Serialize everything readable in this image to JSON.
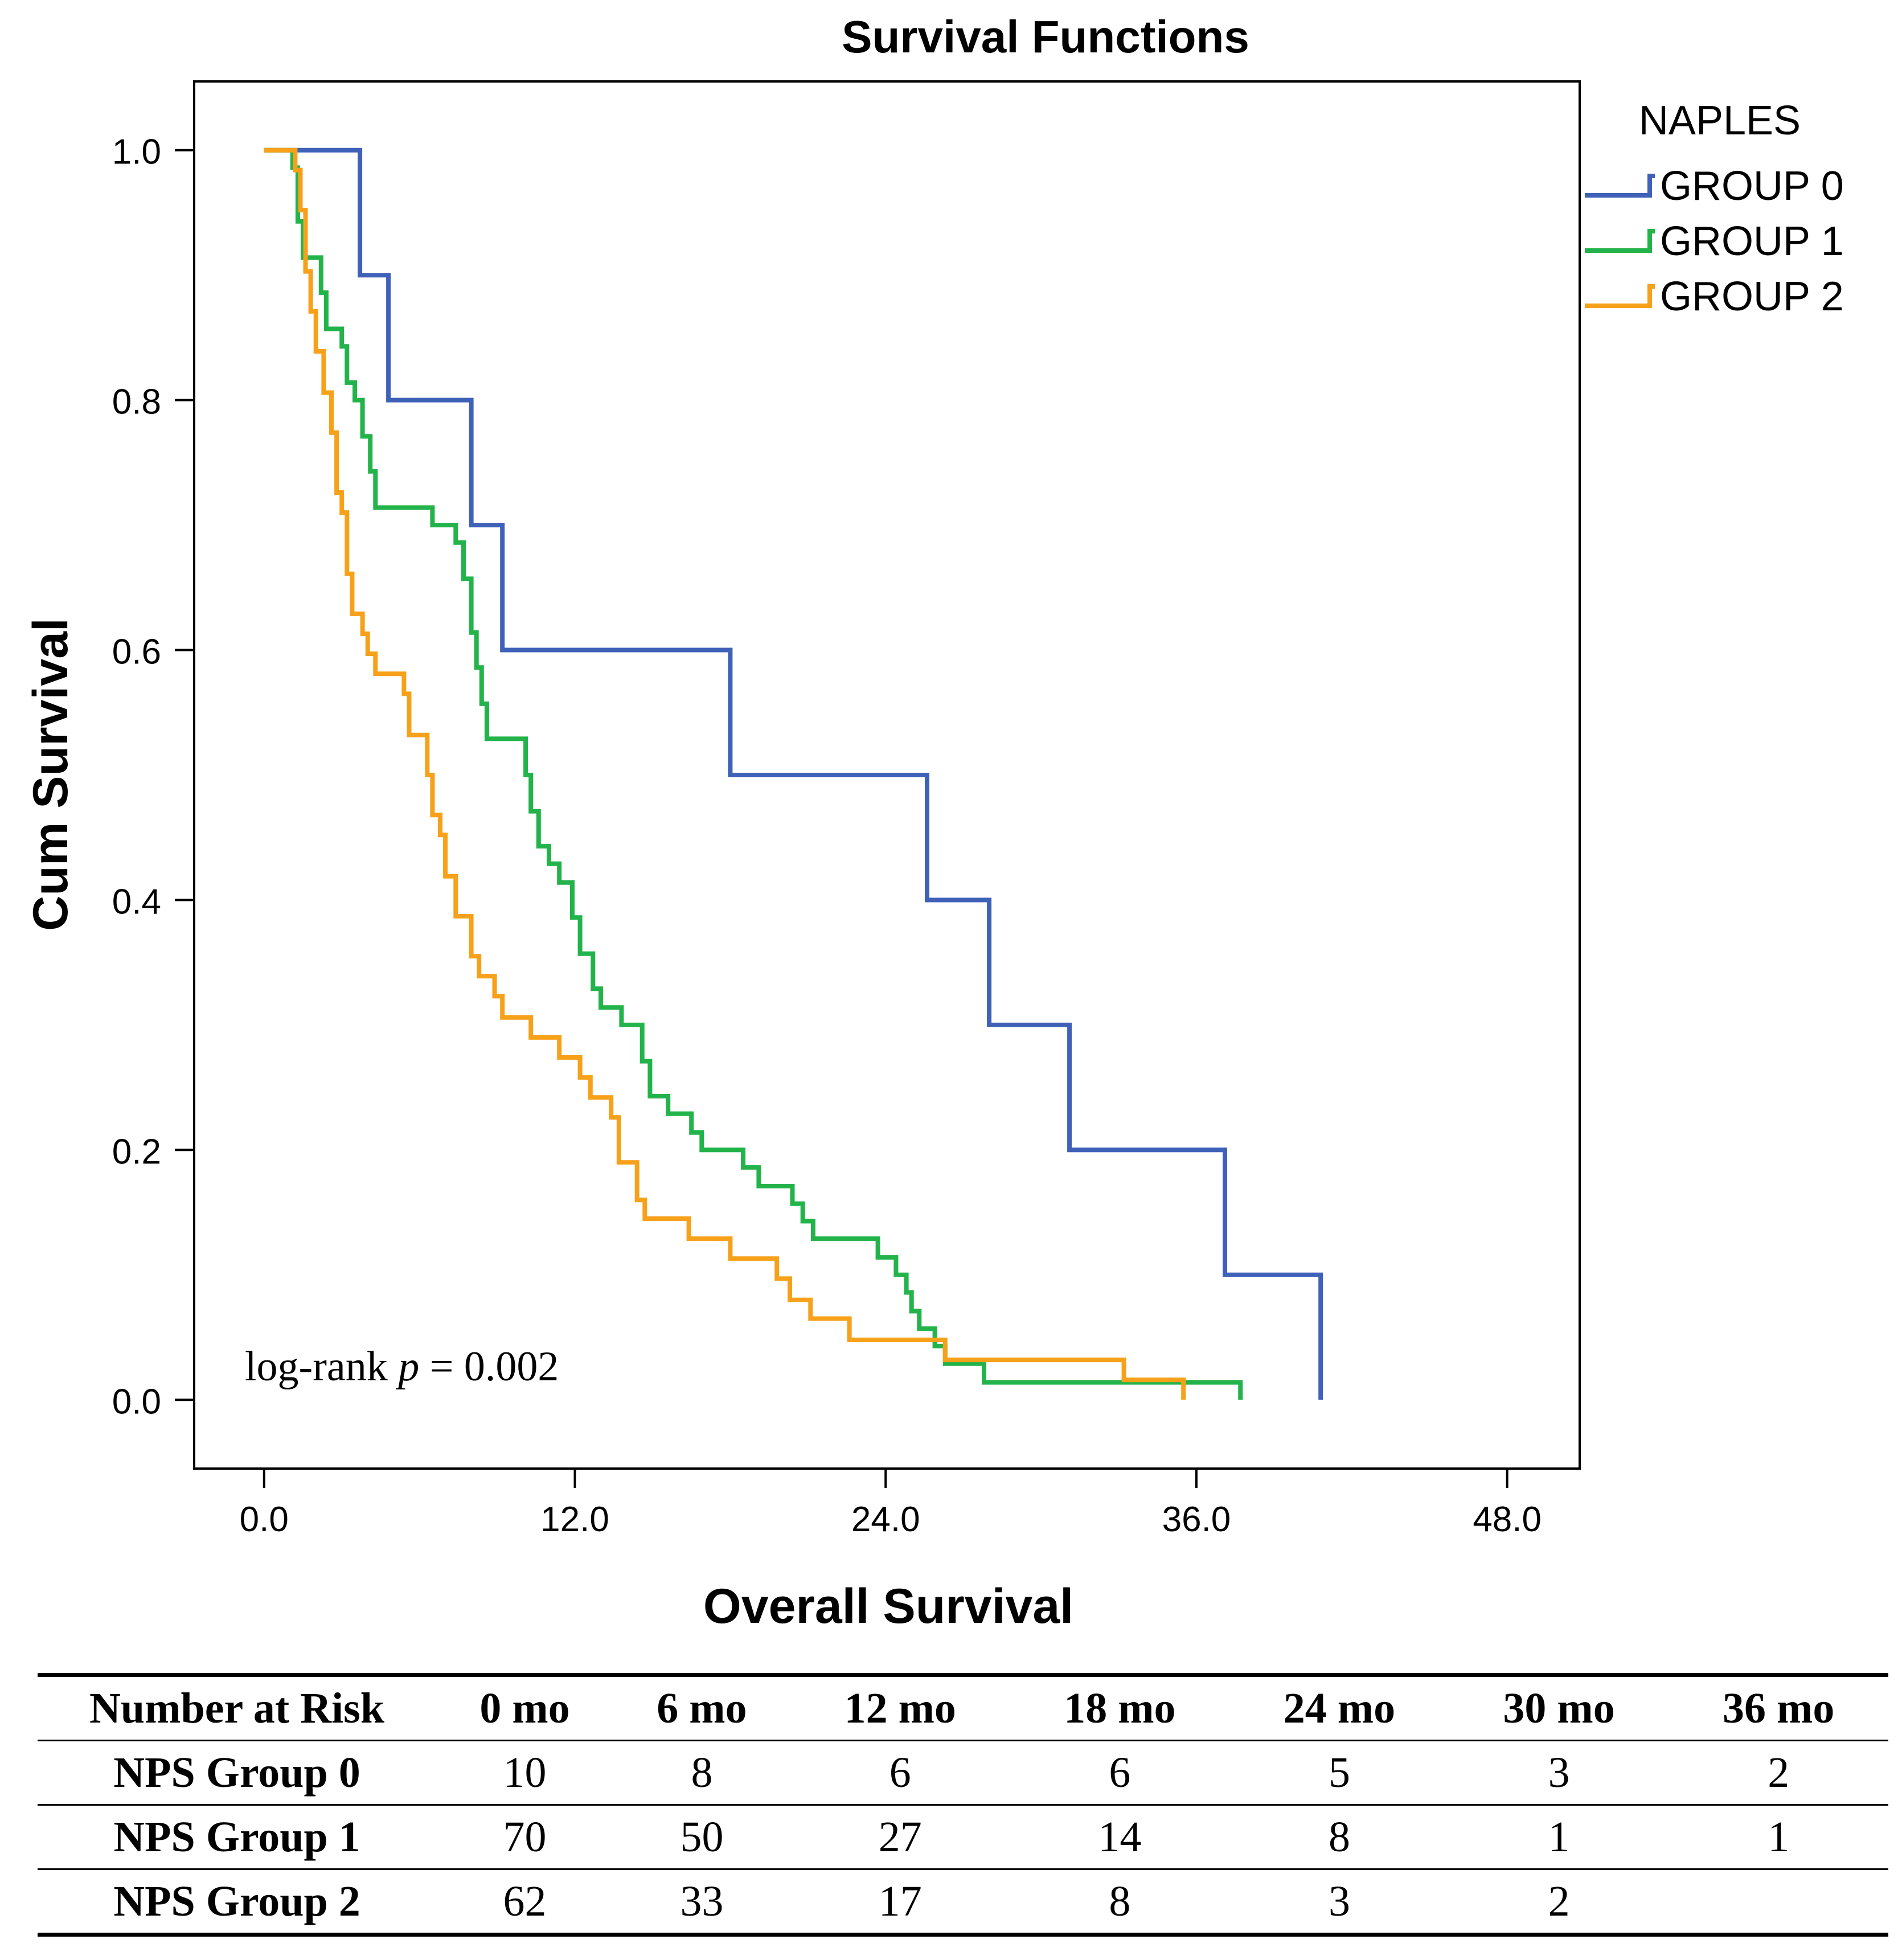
{
  "chart_data": {
    "type": "line",
    "step": true,
    "title": "Survival Functions",
    "xlabel": "Overall Survival",
    "ylabel": "Cum Survival",
    "xlim": [
      -2.7,
      50.8
    ],
    "ylim": [
      -0.055,
      1.055
    ],
    "xticks": [
      "0.0",
      "12.0",
      "24.0",
      "36.0",
      "48.0"
    ],
    "xtick_values": [
      0,
      12,
      24,
      36,
      48
    ],
    "yticks": [
      "0.0",
      "0.2",
      "0.4",
      "0.6",
      "0.8",
      "1.0"
    ],
    "ytick_values": [
      0,
      0.2,
      0.4,
      0.6,
      0.8,
      1.0
    ],
    "legend": {
      "title": "NAPLES",
      "position": "right"
    },
    "annotation": {
      "prefix": "log-rank ",
      "italic": "p",
      "suffix": " = 0.002"
    },
    "series": [
      {
        "name": "GROUP 0",
        "color": "#3f62b8",
        "points": [
          [
            0,
            1
          ],
          [
            3.7,
            1
          ],
          [
            3.7,
            0.9
          ],
          [
            4.8,
            0.9
          ],
          [
            4.8,
            0.8
          ],
          [
            8,
            0.8
          ],
          [
            8,
            0.7
          ],
          [
            9.2,
            0.7
          ],
          [
            9.2,
            0.6
          ],
          [
            18,
            0.6
          ],
          [
            18,
            0.5
          ],
          [
            25.6,
            0.5
          ],
          [
            25.6,
            0.4
          ],
          [
            28,
            0.4
          ],
          [
            28,
            0.3
          ],
          [
            31.1,
            0.3
          ],
          [
            31.1,
            0.2
          ],
          [
            37.1,
            0.2
          ],
          [
            37.1,
            0.1
          ],
          [
            40.8,
            0.1
          ],
          [
            40.8,
            0
          ]
        ]
      },
      {
        "name": "GROUP 1",
        "color": "#23b34b",
        "points": [
          [
            0,
            1
          ],
          [
            1.1,
            1
          ],
          [
            1.1,
            0.986
          ],
          [
            1.3,
            0.986
          ],
          [
            1.3,
            0.943
          ],
          [
            1.5,
            0.943
          ],
          [
            1.5,
            0.914
          ],
          [
            2.2,
            0.914
          ],
          [
            2.2,
            0.886
          ],
          [
            2.4,
            0.886
          ],
          [
            2.4,
            0.857
          ],
          [
            3,
            0.857
          ],
          [
            3,
            0.843
          ],
          [
            3.2,
            0.843
          ],
          [
            3.2,
            0.814
          ],
          [
            3.5,
            0.814
          ],
          [
            3.5,
            0.8
          ],
          [
            3.8,
            0.8
          ],
          [
            3.8,
            0.771
          ],
          [
            4.1,
            0.771
          ],
          [
            4.1,
            0.743
          ],
          [
            4.3,
            0.743
          ],
          [
            4.3,
            0.714
          ],
          [
            6.5,
            0.714
          ],
          [
            6.5,
            0.7
          ],
          [
            7.4,
            0.7
          ],
          [
            7.4,
            0.686
          ],
          [
            7.7,
            0.686
          ],
          [
            7.7,
            0.657
          ],
          [
            8,
            0.657
          ],
          [
            8,
            0.614
          ],
          [
            8.2,
            0.614
          ],
          [
            8.2,
            0.586
          ],
          [
            8.4,
            0.586
          ],
          [
            8.4,
            0.557
          ],
          [
            8.6,
            0.557
          ],
          [
            8.6,
            0.529
          ],
          [
            10.1,
            0.529
          ],
          [
            10.1,
            0.5
          ],
          [
            10.3,
            0.5
          ],
          [
            10.3,
            0.471
          ],
          [
            10.6,
            0.471
          ],
          [
            10.6,
            0.443
          ],
          [
            11,
            0.443
          ],
          [
            11,
            0.429
          ],
          [
            11.4,
            0.429
          ],
          [
            11.4,
            0.414
          ],
          [
            11.9,
            0.414
          ],
          [
            11.9,
            0.386
          ],
          [
            12.2,
            0.386
          ],
          [
            12.2,
            0.357
          ],
          [
            12.7,
            0.357
          ],
          [
            12.7,
            0.329
          ],
          [
            13.0,
            0.329
          ],
          [
            13.0,
            0.314
          ],
          [
            13.8,
            0.314
          ],
          [
            13.8,
            0.3
          ],
          [
            14.6,
            0.3
          ],
          [
            14.6,
            0.271
          ],
          [
            14.9,
            0.271
          ],
          [
            14.9,
            0.243
          ],
          [
            15.6,
            0.243
          ],
          [
            15.6,
            0.229
          ],
          [
            16.5,
            0.229
          ],
          [
            16.5,
            0.214
          ],
          [
            16.9,
            0.214
          ],
          [
            16.9,
            0.2
          ],
          [
            18.5,
            0.2
          ],
          [
            18.5,
            0.186
          ],
          [
            19.1,
            0.186
          ],
          [
            19.1,
            0.171
          ],
          [
            20.4,
            0.171
          ],
          [
            20.4,
            0.157
          ],
          [
            20.8,
            0.157
          ],
          [
            20.8,
            0.143
          ],
          [
            21.2,
            0.143
          ],
          [
            21.2,
            0.129
          ],
          [
            23.7,
            0.129
          ],
          [
            23.7,
            0.114
          ],
          [
            24.4,
            0.114
          ],
          [
            24.4,
            0.1
          ],
          [
            24.8,
            0.1
          ],
          [
            24.8,
            0.086
          ],
          [
            25,
            0.086
          ],
          [
            25,
            0.071
          ],
          [
            25.3,
            0.071
          ],
          [
            25.3,
            0.057
          ],
          [
            25.9,
            0.057
          ],
          [
            25.9,
            0.043
          ],
          [
            26.3,
            0.043
          ],
          [
            26.3,
            0.029
          ],
          [
            27.8,
            0.029
          ],
          [
            27.8,
            0.014
          ],
          [
            37.7,
            0.014
          ],
          [
            37.7,
            0
          ]
        ]
      },
      {
        "name": "GROUP 2",
        "color": "#f7a11a",
        "points": [
          [
            0,
            1
          ],
          [
            1.2,
            1
          ],
          [
            1.2,
            0.984
          ],
          [
            1.4,
            0.984
          ],
          [
            1.4,
            0.952
          ],
          [
            1.6,
            0.952
          ],
          [
            1.6,
            0.903
          ],
          [
            1.8,
            0.903
          ],
          [
            1.8,
            0.871
          ],
          [
            2.0,
            0.871
          ],
          [
            2.0,
            0.839
          ],
          [
            2.3,
            0.839
          ],
          [
            2.3,
            0.806
          ],
          [
            2.6,
            0.806
          ],
          [
            2.6,
            0.774
          ],
          [
            2.8,
            0.774
          ],
          [
            2.8,
            0.726
          ],
          [
            3.0,
            0.726
          ],
          [
            3.0,
            0.71
          ],
          [
            3.2,
            0.71
          ],
          [
            3.2,
            0.661
          ],
          [
            3.4,
            0.661
          ],
          [
            3.4,
            0.629
          ],
          [
            3.8,
            0.629
          ],
          [
            3.8,
            0.613
          ],
          [
            4.0,
            0.613
          ],
          [
            4.0,
            0.597
          ],
          [
            4.3,
            0.597
          ],
          [
            4.3,
            0.581
          ],
          [
            5.4,
            0.581
          ],
          [
            5.4,
            0.565
          ],
          [
            5.6,
            0.565
          ],
          [
            5.6,
            0.532
          ],
          [
            6.3,
            0.532
          ],
          [
            6.3,
            0.5
          ],
          [
            6.5,
            0.5
          ],
          [
            6.5,
            0.468
          ],
          [
            6.8,
            0.468
          ],
          [
            6.8,
            0.452
          ],
          [
            7.0,
            0.452
          ],
          [
            7.0,
            0.419
          ],
          [
            7.4,
            0.419
          ],
          [
            7.4,
            0.387
          ],
          [
            8.0,
            0.387
          ],
          [
            8.0,
            0.355
          ],
          [
            8.3,
            0.355
          ],
          [
            8.3,
            0.339
          ],
          [
            8.9,
            0.339
          ],
          [
            8.9,
            0.323
          ],
          [
            9.2,
            0.323
          ],
          [
            9.2,
            0.306
          ],
          [
            10.3,
            0.306
          ],
          [
            10.3,
            0.29
          ],
          [
            11.4,
            0.29
          ],
          [
            11.4,
            0.274
          ],
          [
            12.2,
            0.274
          ],
          [
            12.2,
            0.258
          ],
          [
            12.6,
            0.258
          ],
          [
            12.6,
            0.242
          ],
          [
            13.4,
            0.242
          ],
          [
            13.4,
            0.226
          ],
          [
            13.7,
            0.226
          ],
          [
            13.7,
            0.19
          ],
          [
            14.4,
            0.19
          ],
          [
            14.4,
            0.16
          ],
          [
            14.7,
            0.16
          ],
          [
            14.7,
            0.145
          ],
          [
            16.4,
            0.145
          ],
          [
            16.4,
            0.129
          ],
          [
            18.0,
            0.129
          ],
          [
            18.0,
            0.113
          ],
          [
            19.8,
            0.113
          ],
          [
            19.8,
            0.097
          ],
          [
            20.3,
            0.097
          ],
          [
            20.3,
            0.08
          ],
          [
            21.1,
            0.08
          ],
          [
            21.1,
            0.065
          ],
          [
            22.6,
            0.065
          ],
          [
            22.6,
            0.048
          ],
          [
            26.3,
            0.048
          ],
          [
            26.3,
            0.032
          ],
          [
            33.2,
            0.032
          ],
          [
            33.2,
            0.016
          ],
          [
            35.5,
            0.016
          ],
          [
            35.5,
            0
          ]
        ]
      }
    ]
  },
  "risk_table": {
    "header": [
      "Number at Risk",
      "0 mo",
      "6 mo",
      "12 mo",
      "18 mo",
      "24 mo",
      "30 mo",
      "36 mo"
    ],
    "rows": [
      {
        "label": "NPS Group 0",
        "values": [
          "10",
          "8",
          "6",
          "6",
          "5",
          "3",
          "2"
        ]
      },
      {
        "label": "NPS Group 1",
        "values": [
          "70",
          "50",
          "27",
          "14",
          "8",
          "1",
          "1"
        ]
      },
      {
        "label": "NPS Group 2",
        "values": [
          "62",
          "33",
          "17",
          "8",
          "3",
          "2",
          ""
        ]
      }
    ]
  }
}
